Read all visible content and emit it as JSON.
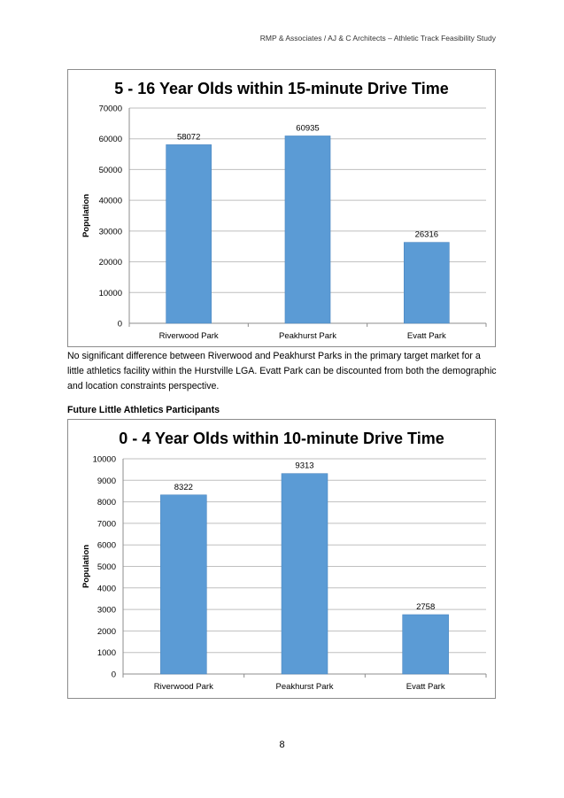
{
  "header": {
    "text": "RMP & Associates / AJ & C Architects – Athletic Track Feasibility Study"
  },
  "paragraph": "No significant difference between Riverwood and Peakhurst Parks in the primary target market for a little athletics facility within the Hurstville LGA. Evatt Park can be discounted from both the demographic and location constraints perspective.",
  "subheading": "Future Little Athletics Participants",
  "page_number": "8",
  "colors": {
    "bar": "#5b9bd5",
    "bar_edge": "#4a86c0",
    "grid": "#bfbfbf",
    "border": "#8c8c8c"
  },
  "chart_data": [
    {
      "type": "bar",
      "title": "5 - 16 Year Olds within 15-minute Drive Time",
      "xlabel": "",
      "ylabel": "Population",
      "categories": [
        "Riverwood Park",
        "Peakhurst Park",
        "Evatt Park"
      ],
      "values": [
        58072,
        60935,
        26316
      ],
      "ylim": [
        0,
        70000
      ],
      "yticks": [
        0,
        10000,
        20000,
        30000,
        40000,
        50000,
        60000,
        70000
      ],
      "grid": true,
      "legend": "none"
    },
    {
      "type": "bar",
      "title": "0 - 4 Year Olds within 10-minute Drive Time",
      "xlabel": "",
      "ylabel": "Population",
      "categories": [
        "Riverwood Park",
        "Peakhurst Park",
        "Evatt Park"
      ],
      "values": [
        8322,
        9313,
        2758
      ],
      "ylim": [
        0,
        10000
      ],
      "yticks": [
        0,
        1000,
        2000,
        3000,
        4000,
        5000,
        6000,
        7000,
        8000,
        9000,
        10000
      ],
      "grid": true,
      "legend": "none"
    }
  ]
}
